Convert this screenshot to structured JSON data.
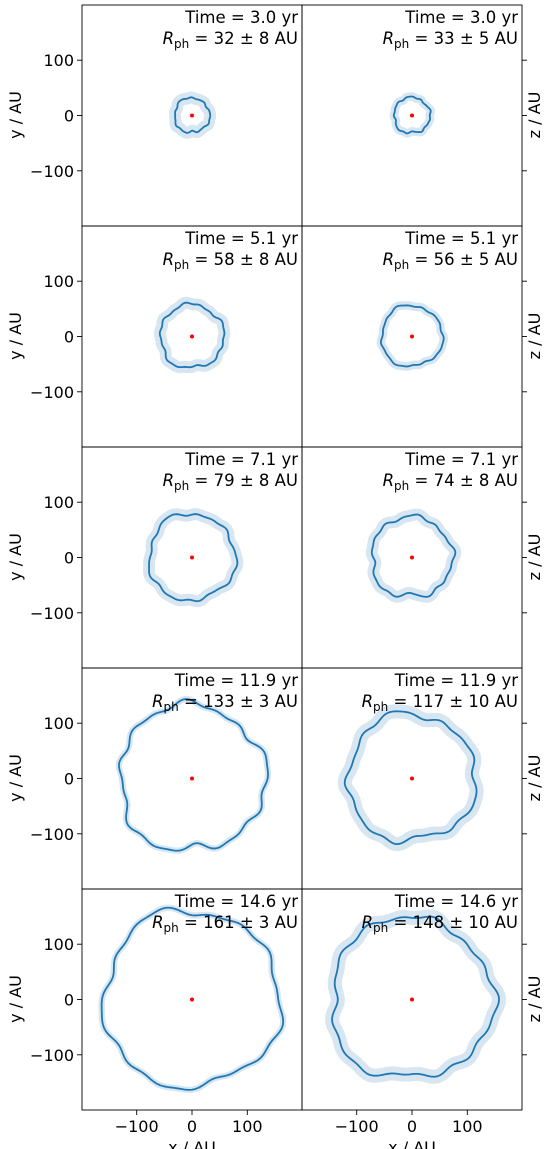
{
  "chart_data": {
    "type": "line",
    "xlabel": "x / AU",
    "ylabel_left": "y / AU",
    "ylabel_right": "z / AU",
    "xlim": [
      -200,
      200
    ],
    "ylim": [
      -200,
      200
    ],
    "xticks": [
      {
        "v": -100,
        "label": "−100"
      },
      {
        "v": 0,
        "label": "0"
      },
      {
        "v": 100,
        "label": "100"
      }
    ],
    "yticks": [
      {
        "v": 100,
        "label": "100"
      },
      {
        "v": 0,
        "label": "0"
      },
      {
        "v": -100,
        "label": "−100"
      }
    ],
    "grid": false,
    "line_color": "#1f77b4",
    "band_color": "#1f77b4",
    "center_color": "#ff0000",
    "rows": [
      {
        "time": "Time = 3.0 yr",
        "left": {
          "rph": "= 32 ± 8 AU",
          "radius": 32,
          "err": 8
        },
        "right": {
          "rph": "= 33 ± 5 AU",
          "radius": 33,
          "err": 5
        }
      },
      {
        "time": "Time = 5.1 yr",
        "left": {
          "rph": "= 58 ± 8 AU",
          "radius": 58,
          "err": 8
        },
        "right": {
          "rph": "= 56 ± 5 AU",
          "radius": 56,
          "err": 5
        }
      },
      {
        "time": "Time = 7.1 yr",
        "left": {
          "rph": "= 79 ± 8 AU",
          "radius": 79,
          "err": 8
        },
        "right": {
          "rph": "= 74 ± 8 AU",
          "radius": 74,
          "err": 8
        }
      },
      {
        "time": "Time = 11.9 yr",
        "left": {
          "rph": "= 133 ± 3 AU",
          "radius": 133,
          "err": 3
        },
        "right": {
          "rph": "= 117 ± 10 AU",
          "radius": 117,
          "err": 10
        }
      },
      {
        "time": "Time = 14.6 yr",
        "left": {
          "rph": "= 161 ± 3 AU",
          "radius": 161,
          "err": 3
        },
        "right": {
          "rph": "= 148 ± 10 AU",
          "radius": 148,
          "err": 10
        }
      }
    ]
  }
}
